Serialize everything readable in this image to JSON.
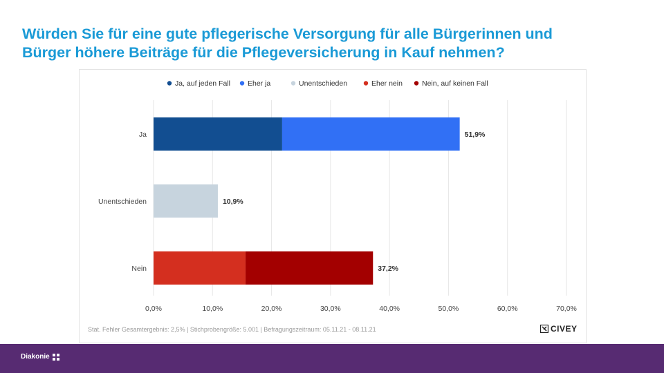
{
  "title": {
    "line1": "Würden Sie für eine gute pflegerische Versorgung für alle Bürgerinnen und",
    "line2": "Bürger höhere Beiträge für die Pflegeversicherung in Kauf nehmen?"
  },
  "footnote": "Stat. Fehler Gesamtergebnis: 2,5% | Stichprobengröße: 5.001 | Befragungszeitraum: 05.11.21 - 08.11.21",
  "brand": {
    "name": "CIVEY",
    "icon": "civey-logo-icon"
  },
  "footer": {
    "logo_text": "Diakonie",
    "icon": "diakonie-cross-icon"
  },
  "colors": {
    "title": "#1a9ad6",
    "ja_auf_jeden_fall": "#124e91",
    "eher_ja": "#3170f5",
    "unentschieden": "#c7d4de",
    "eher_nein": "#d42f1f",
    "nein_auf_keinen_fall": "#a30000",
    "footer_bar": "#572b72"
  },
  "chart_data": {
    "type": "bar",
    "orientation": "horizontal",
    "stacked": true,
    "categories": [
      "Ja",
      "Unentschieden",
      "Nein"
    ],
    "legend_position": "top",
    "legend": [
      "Ja, auf jeden Fall",
      "Eher ja",
      "Unentschieden",
      "Eher nein",
      "Nein, auf keinen Fall"
    ],
    "series": [
      {
        "name": "Ja, auf jeden Fall",
        "color": "#124e91",
        "values": [
          21.8,
          0,
          0
        ]
      },
      {
        "name": "Eher ja",
        "color": "#3170f5",
        "values": [
          30.1,
          0,
          0
        ]
      },
      {
        "name": "Unentschieden",
        "color": "#c7d4de",
        "values": [
          0,
          10.9,
          0
        ]
      },
      {
        "name": "Eher nein",
        "color": "#d42f1f",
        "values": [
          0,
          0,
          15.6
        ]
      },
      {
        "name": "Nein, auf keinen Fall",
        "color": "#a30000",
        "values": [
          0,
          0,
          21.6
        ]
      }
    ],
    "totals": [
      "51,9%",
      "10,9%",
      "37,2%"
    ],
    "xlim": [
      0,
      70
    ],
    "xticks": [
      "0,0%",
      "10,0%",
      "20,0%",
      "30,0%",
      "40,0%",
      "50,0%",
      "60,0%",
      "70,0%"
    ],
    "grid": true
  }
}
